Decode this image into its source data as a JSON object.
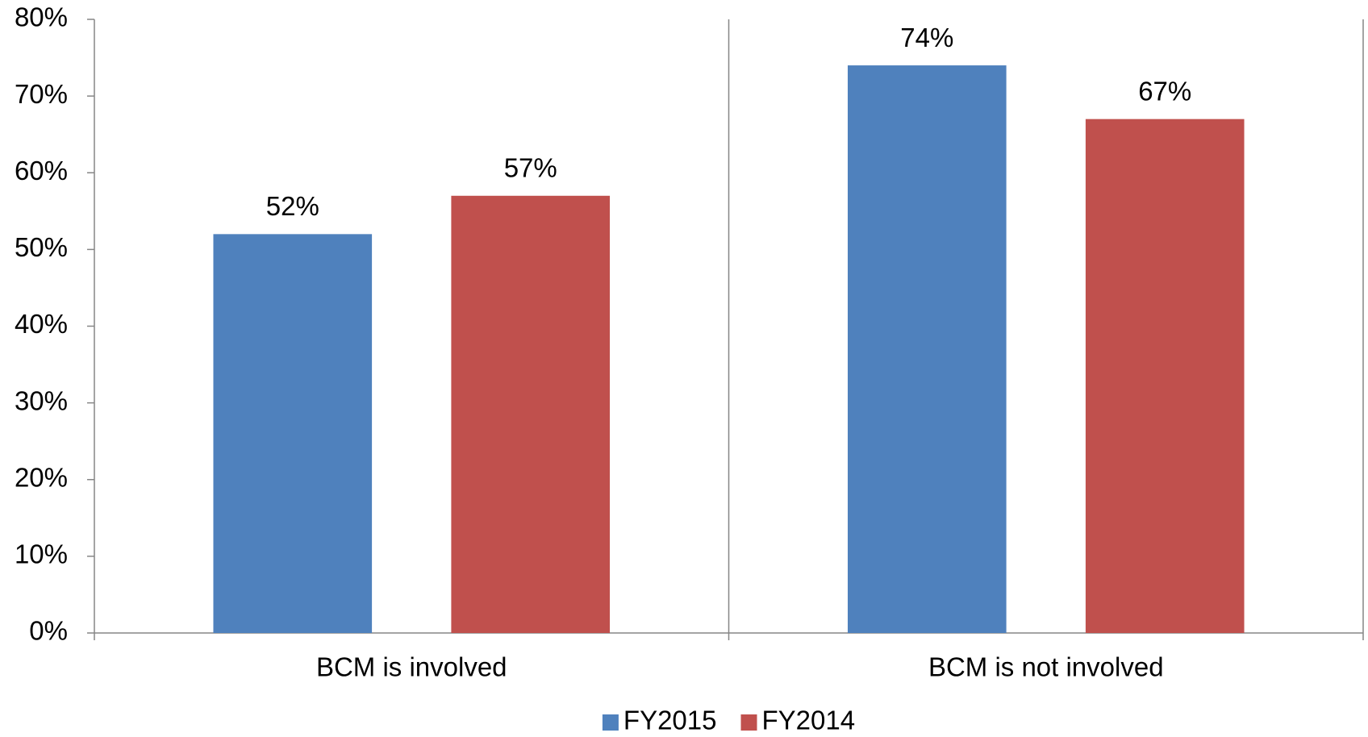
{
  "chart_data": {
    "type": "bar",
    "categories": [
      "BCM is involved",
      "BCM is not involved"
    ],
    "series": [
      {
        "name": "FY2015",
        "color": "#4f81bd",
        "values": [
          52,
          74
        ],
        "value_labels": [
          "52%",
          "74%"
        ]
      },
      {
        "name": "FY2014",
        "color": "#c0504d",
        "values": [
          57,
          67
        ],
        "value_labels": [
          "57%",
          "67%"
        ]
      }
    ],
    "ylim": [
      0,
      80
    ],
    "yticks": [
      {
        "value": 0,
        "label": "0%"
      },
      {
        "value": 10,
        "label": "10%"
      },
      {
        "value": 20,
        "label": "20%"
      },
      {
        "value": 30,
        "label": "30%"
      },
      {
        "value": 40,
        "label": "40%"
      },
      {
        "value": 50,
        "label": "50%"
      },
      {
        "value": 60,
        "label": "60%"
      },
      {
        "value": 70,
        "label": "70%"
      },
      {
        "value": 80,
        "label": "80%"
      }
    ],
    "legend": "bottom"
  }
}
